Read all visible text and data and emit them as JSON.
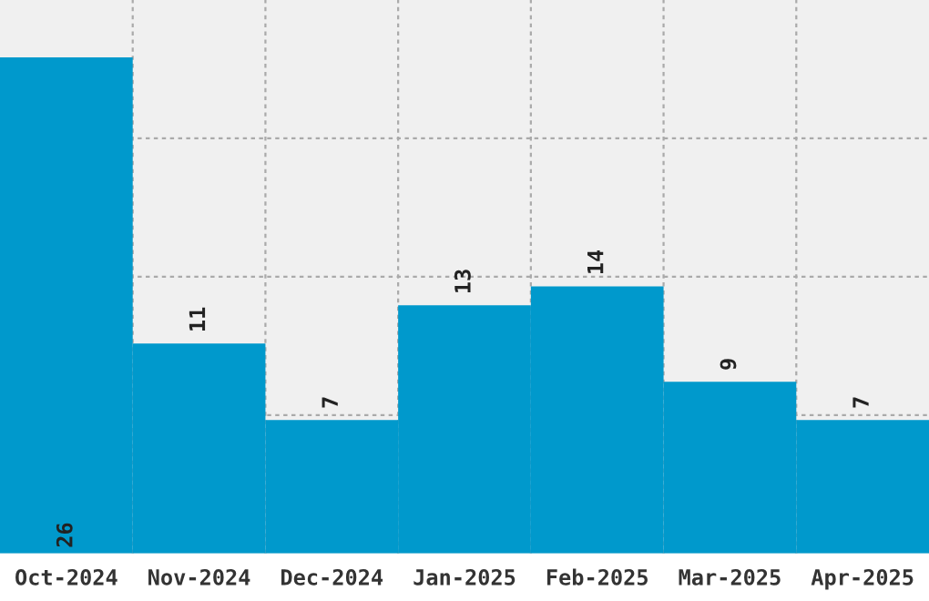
{
  "chart_data": {
    "type": "bar",
    "categories": [
      "Oct-2024",
      "Nov-2024",
      "Dec-2024",
      "Jan-2025",
      "Feb-2025",
      "Mar-2025",
      "Apr-2025"
    ],
    "values": [
      26,
      11,
      7,
      13,
      14,
      9,
      7
    ],
    "color": "#0099cc",
    "ylim": [
      0,
      29
    ],
    "yticks": [
      {
        "value": 7.25,
        "label": null
      },
      {
        "value": 14.5,
        "label": null
      },
      {
        "value": 21.75,
        "label": null
      }
    ],
    "tick_labels": "x",
    "grid": true,
    "data_labels": true
  }
}
